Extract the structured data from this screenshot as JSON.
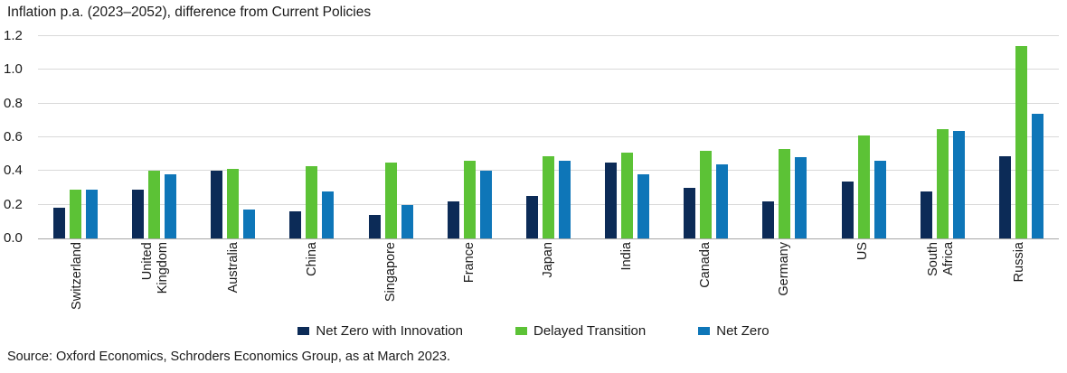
{
  "title": "Inflation p.a. (2023–2052), difference from Current Policies",
  "source": "Source: Oxford Economics, Schroders Economics Group, as at March 2023.",
  "colors": {
    "net_zero_innovation": "#0C2B57",
    "delayed_transition": "#5CC236",
    "net_zero": "#0E76B8",
    "gridline": "#D9D9D9",
    "baseline": "#A6A6A6",
    "text": "#1A1A1A"
  },
  "chart_data": {
    "type": "bar",
    "title": "Inflation p.a. (2023–2052), difference from Current Policies",
    "xlabel": "",
    "ylabel": "",
    "ylim": [
      0,
      1.2
    ],
    "ytick_step": 0.2,
    "yticks": [
      "1.2",
      "1.0",
      "0.8",
      "0.6",
      "0.4",
      "0.2",
      "0.0"
    ],
    "grid": true,
    "legend_position": "bottom",
    "categories": [
      "Switzerland",
      "United Kingdom",
      "Australia",
      "China",
      "Singapore",
      "France",
      "Japan",
      "India",
      "Canada",
      "Germany",
      "US",
      "South Africa",
      "Russia"
    ],
    "category_display": [
      "Switzerland",
      "United\nKingdom",
      "Australia",
      "China",
      "Singapore",
      "France",
      "Japan",
      "India",
      "Canada",
      "Germany",
      "US",
      "South\nAfrica",
      "Russia"
    ],
    "series": [
      {
        "name": "Net Zero with Innovation",
        "color_key": "net_zero_innovation",
        "values": [
          0.18,
          0.29,
          0.4,
          0.16,
          0.14,
          0.22,
          0.25,
          0.45,
          0.3,
          0.22,
          0.34,
          0.28,
          0.49
        ]
      },
      {
        "name": "Delayed Transition",
        "color_key": "delayed_transition",
        "values": [
          0.29,
          0.4,
          0.41,
          0.43,
          0.45,
          0.46,
          0.49,
          0.51,
          0.52,
          0.53,
          0.61,
          0.65,
          1.14
        ]
      },
      {
        "name": "Net Zero",
        "color_key": "net_zero",
        "values": [
          0.29,
          0.38,
          0.17,
          0.28,
          0.2,
          0.4,
          0.46,
          0.38,
          0.44,
          0.48,
          0.46,
          0.64,
          0.74
        ]
      }
    ]
  }
}
